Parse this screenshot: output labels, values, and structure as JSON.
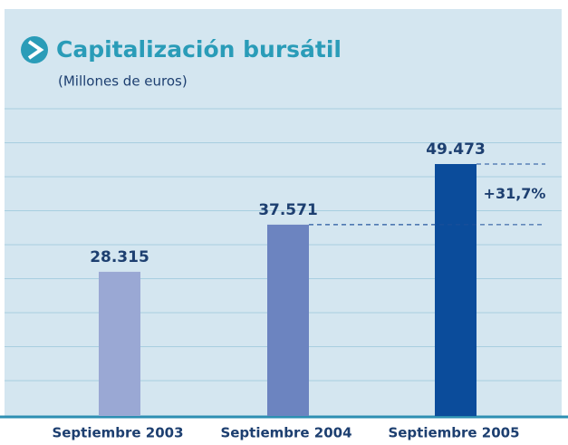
{
  "chart_data": {
    "type": "bar",
    "title": "Capitalización bursátil",
    "subtitle": "(Millones de euros)",
    "categories": [
      "Septiembre 2003",
      "Septiembre 2004",
      "Septiembre 2005"
    ],
    "values": [
      28315,
      37571,
      49473
    ],
    "value_labels": [
      "28.315",
      "37.571",
      "49.473"
    ],
    "colors": [
      "#9aa8d4",
      "#6c84c0",
      "#0b4c9b"
    ],
    "annotation": "+31,7%"
  }
}
